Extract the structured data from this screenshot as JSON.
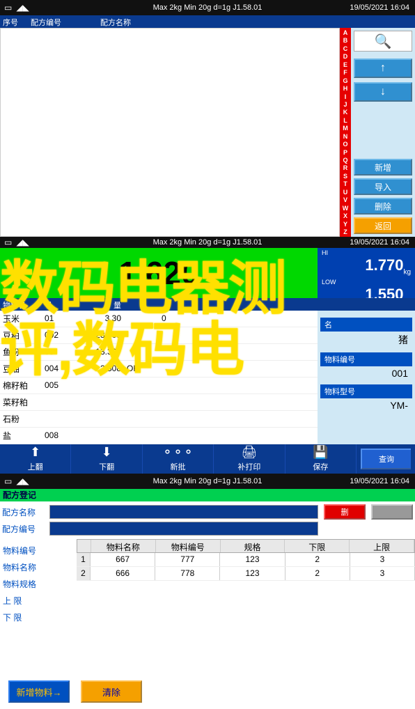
{
  "shared": {
    "device_info": "Max 2kg  Min 20g  d=1g    J1.58.01",
    "datetime": "19/05/2021  16:04"
  },
  "screen1": {
    "header": {
      "col1": "序号",
      "col2": "配方编号",
      "col3": "配方名称"
    },
    "alphabet": [
      "A",
      "B",
      "C",
      "D",
      "E",
      "F",
      "G",
      "H",
      "I",
      "J",
      "K",
      "L",
      "M",
      "N",
      "O",
      "P",
      "Q",
      "R",
      "S",
      "T",
      "U",
      "V",
      "W",
      "X",
      "Y",
      "Z"
    ],
    "search_glyph": "🔍",
    "up_glyph": "↑",
    "down_glyph": "↓",
    "btn_new": "新增",
    "btn_import": "导入",
    "btn_delete": "删除",
    "btn_back": "返回",
    "colors": {
      "header_bg": "#0a3a8f",
      "alpha_bg": "#e60000",
      "panel_bg": "#d0e8f5",
      "button_bg": "#3090d0",
      "back_bg": "#f5a000"
    }
  },
  "screen2": {
    "weight": "1.620",
    "hi_label": "HI",
    "hi_value": "1.770",
    "low_label": "LOW",
    "low_value": "1.550",
    "unit": "kg",
    "grid_header": {
      "c1": "物料名",
      "c2": "号",
      "c3": "量",
      "c4": "",
      "c5": ""
    },
    "rows": [
      {
        "name": "玉米",
        "num": "01",
        "qty": "3.30",
        "st": "",
        "r": "0"
      },
      {
        "name": "豆粕",
        "num": "002",
        "qty": "28.009",
        "st": "",
        "r": ""
      },
      {
        "name": "鱼粉",
        "num": "03",
        "qty": "13.307",
        "st": "",
        "r": ""
      },
      {
        "name": "豆油",
        "num": "004",
        "qty": "2.508",
        "st": "OK",
        "r": ""
      },
      {
        "name": "棉籽粕",
        "num": "005",
        "qty": "",
        "st": "",
        "r": ""
      },
      {
        "name": "菜籽粕",
        "num": "",
        "qty": "",
        "st": "",
        "r": ""
      },
      {
        "name": "石粉",
        "num": "",
        "qty": "",
        "st": "",
        "r": ""
      },
      {
        "name": "盐",
        "num": "008",
        "qty": "",
        "st": "",
        "r": ""
      }
    ],
    "info": {
      "lbl1": "名",
      "val1": "猪",
      "lbl2": "",
      "val2": "",
      "lbl3": "物料编号",
      "val3": "001",
      "lbl4": "",
      "val4": "",
      "lbl5": "物料型号",
      "val5": "YM-"
    },
    "bottom": {
      "b1": "上翻",
      "b2": "下翻",
      "b3": "新批",
      "b4": "补打印",
      "b5": "保存",
      "b6": "查询"
    },
    "colors": {
      "weight_bg": "#00d800",
      "limits_bg": "#0040b0",
      "bottom_bg": "#0a3a8f"
    }
  },
  "screen3": {
    "title": "配方登记",
    "form": {
      "name_label": "配方名称",
      "code_label": "配方编号",
      "btn_del": "删",
      "btn_x": ""
    },
    "left_labels": [
      "物料编号",
      "物料名称",
      "物料规格",
      "上 限",
      "下 限"
    ],
    "tbl_header": [
      "物料名称",
      "物料编号",
      "规格",
      "下限",
      "上限"
    ],
    "tbl_rows": [
      {
        "n": "1",
        "c1": "667",
        "c2": "777",
        "c3": "123",
        "c4": "2",
        "c5": "3"
      },
      {
        "n": "2",
        "c1": "666",
        "c2": "778",
        "c3": "123",
        "c4": "2",
        "c5": "3"
      }
    ],
    "btn_add": "新增物料→",
    "btn_clear": "清除",
    "colors": {
      "title_bg": "#00d050",
      "add_bg": "#0050c0",
      "clear_bg": "#f5a000"
    }
  },
  "overlay": {
    "line1": "数码电器测",
    "line2": "评,数码电"
  }
}
